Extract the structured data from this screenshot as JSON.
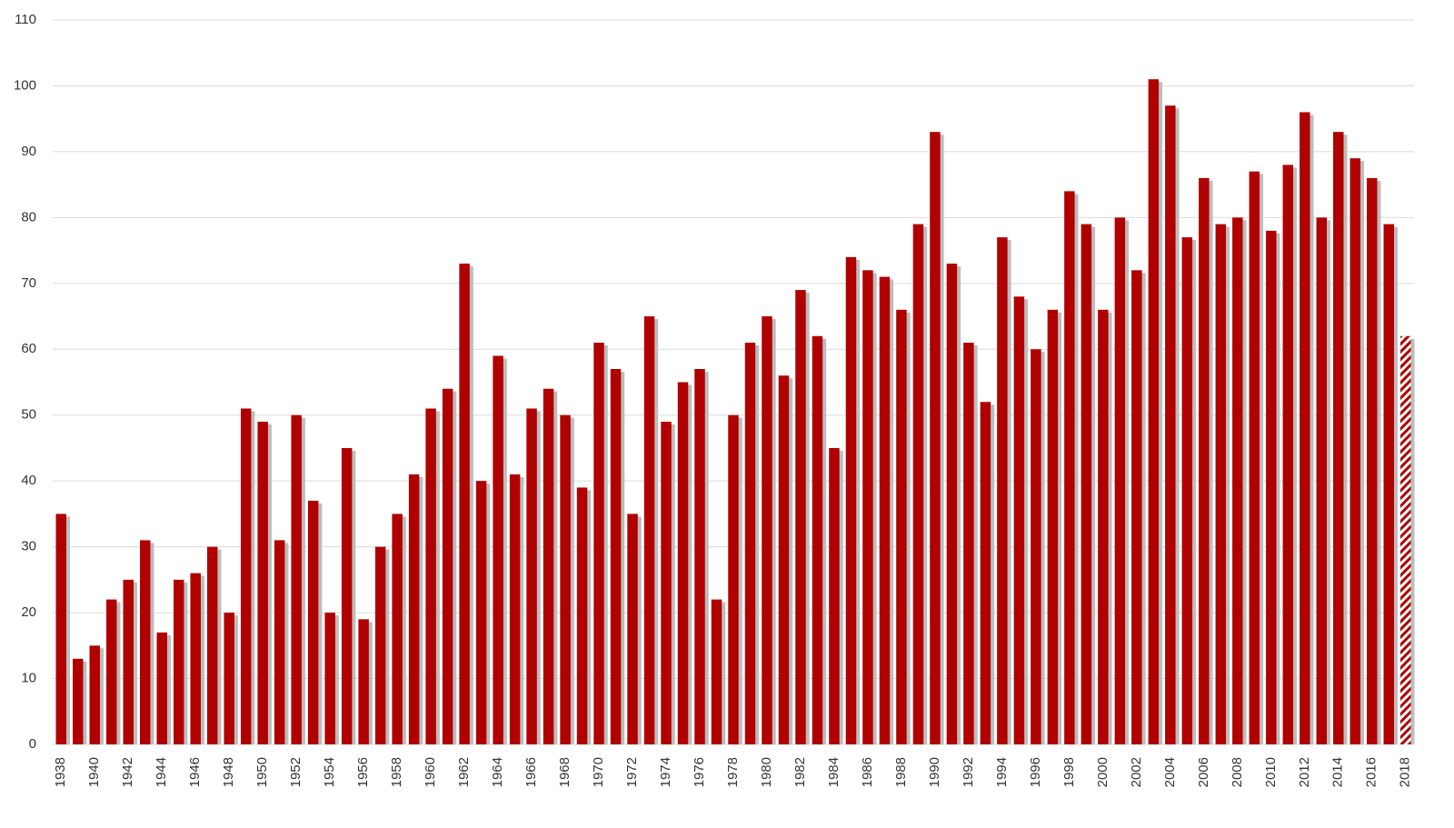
{
  "chart_data": {
    "type": "bar",
    "categories": [
      "1938",
      null,
      "1940",
      null,
      "1942",
      null,
      "1944",
      null,
      "1946",
      null,
      "1948",
      null,
      "1950",
      null,
      "1952",
      null,
      "1954",
      null,
      "1956",
      null,
      "1958",
      null,
      "1960",
      null,
      "1962",
      null,
      "1964",
      null,
      "1966",
      null,
      "1968",
      null,
      "1970",
      null,
      "1972",
      null,
      "1974",
      null,
      "1976",
      null,
      "1978",
      null,
      "1980",
      null,
      "1982",
      null,
      "1984",
      null,
      "1986",
      null,
      "1988",
      null,
      "1990",
      null,
      "1992",
      null,
      "1994",
      null,
      "1996",
      null,
      "1998",
      null,
      "2000",
      null,
      "2002",
      null,
      "2004",
      null,
      "2006",
      null,
      "2008",
      null,
      "2010",
      null,
      "2012",
      null,
      "2014",
      null,
      "2016",
      null,
      "2018"
    ],
    "values": [
      35,
      13,
      15,
      22,
      25,
      31,
      17,
      25,
      26,
      30,
      20,
      51,
      49,
      31,
      50,
      37,
      20,
      45,
      19,
      30,
      35,
      41,
      51,
      54,
      73,
      40,
      59,
      41,
      51,
      54,
      50,
      39,
      61,
      57,
      35,
      65,
      49,
      55,
      57,
      22,
      50,
      61,
      65,
      56,
      69,
      62,
      45,
      74,
      72,
      71,
      66,
      79,
      93,
      73,
      61,
      52,
      77,
      68,
      60,
      66,
      84,
      79,
      66,
      80,
      72,
      101,
      97,
      77,
      86,
      79,
      80,
      87,
      78,
      88,
      96,
      80,
      93,
      89,
      86,
      79,
      62
    ],
    "color": "#b00000",
    "last_bar_hatched": true,
    "ylim": [
      0,
      110
    ],
    "yticks": [
      0,
      10,
      20,
      30,
      40,
      50,
      60,
      70,
      80,
      90,
      100,
      110
    ],
    "grid": true
  }
}
